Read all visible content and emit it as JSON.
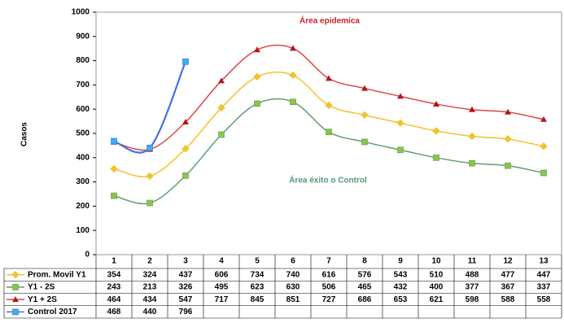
{
  "chart_data": {
    "type": "line",
    "y_label": "Casos",
    "annotations": [
      "Área epidemica",
      "Área éxito o Control"
    ],
    "categories": [
      "1",
      "2",
      "3",
      "4",
      "5",
      "6",
      "7",
      "8",
      "9",
      "10",
      "11",
      "12",
      "13"
    ],
    "series": [
      {
        "name": "Prom.  Movil Y1",
        "color": "#f2c230",
        "marker": "diamond",
        "values": [
          354,
          324,
          437,
          606,
          734,
          740,
          616,
          576,
          543,
          510,
          488,
          477,
          447
        ]
      },
      {
        "name": "Y1 - 2S",
        "color": "#5f9e6e",
        "marker": "square",
        "marker_color": "#8dc63f",
        "values": [
          243,
          213,
          326,
          495,
          623,
          630,
          506,
          465,
          432,
          400,
          377,
          367,
          337
        ]
      },
      {
        "name": "Y1 + 2S",
        "color": "#d9474b",
        "marker": "triangle",
        "marker_color": "#b0181e",
        "values": [
          464,
          434,
          547,
          717,
          845,
          851,
          727,
          686,
          653,
          621,
          598,
          588,
          558
        ]
      },
      {
        "name": "Control 2017",
        "color": "#4a6fe0",
        "marker": "square",
        "marker_color": "#3ab0e8",
        "values": [
          468,
          440,
          796,
          null,
          null,
          null,
          null,
          null,
          null,
          null,
          null,
          null,
          null
        ]
      }
    ],
    "ylim": [
      0,
      1000
    ],
    "yticks": [
      0,
      100,
      200,
      300,
      400,
      500,
      600,
      700,
      800,
      900,
      1000
    ],
    "grid": false
  }
}
